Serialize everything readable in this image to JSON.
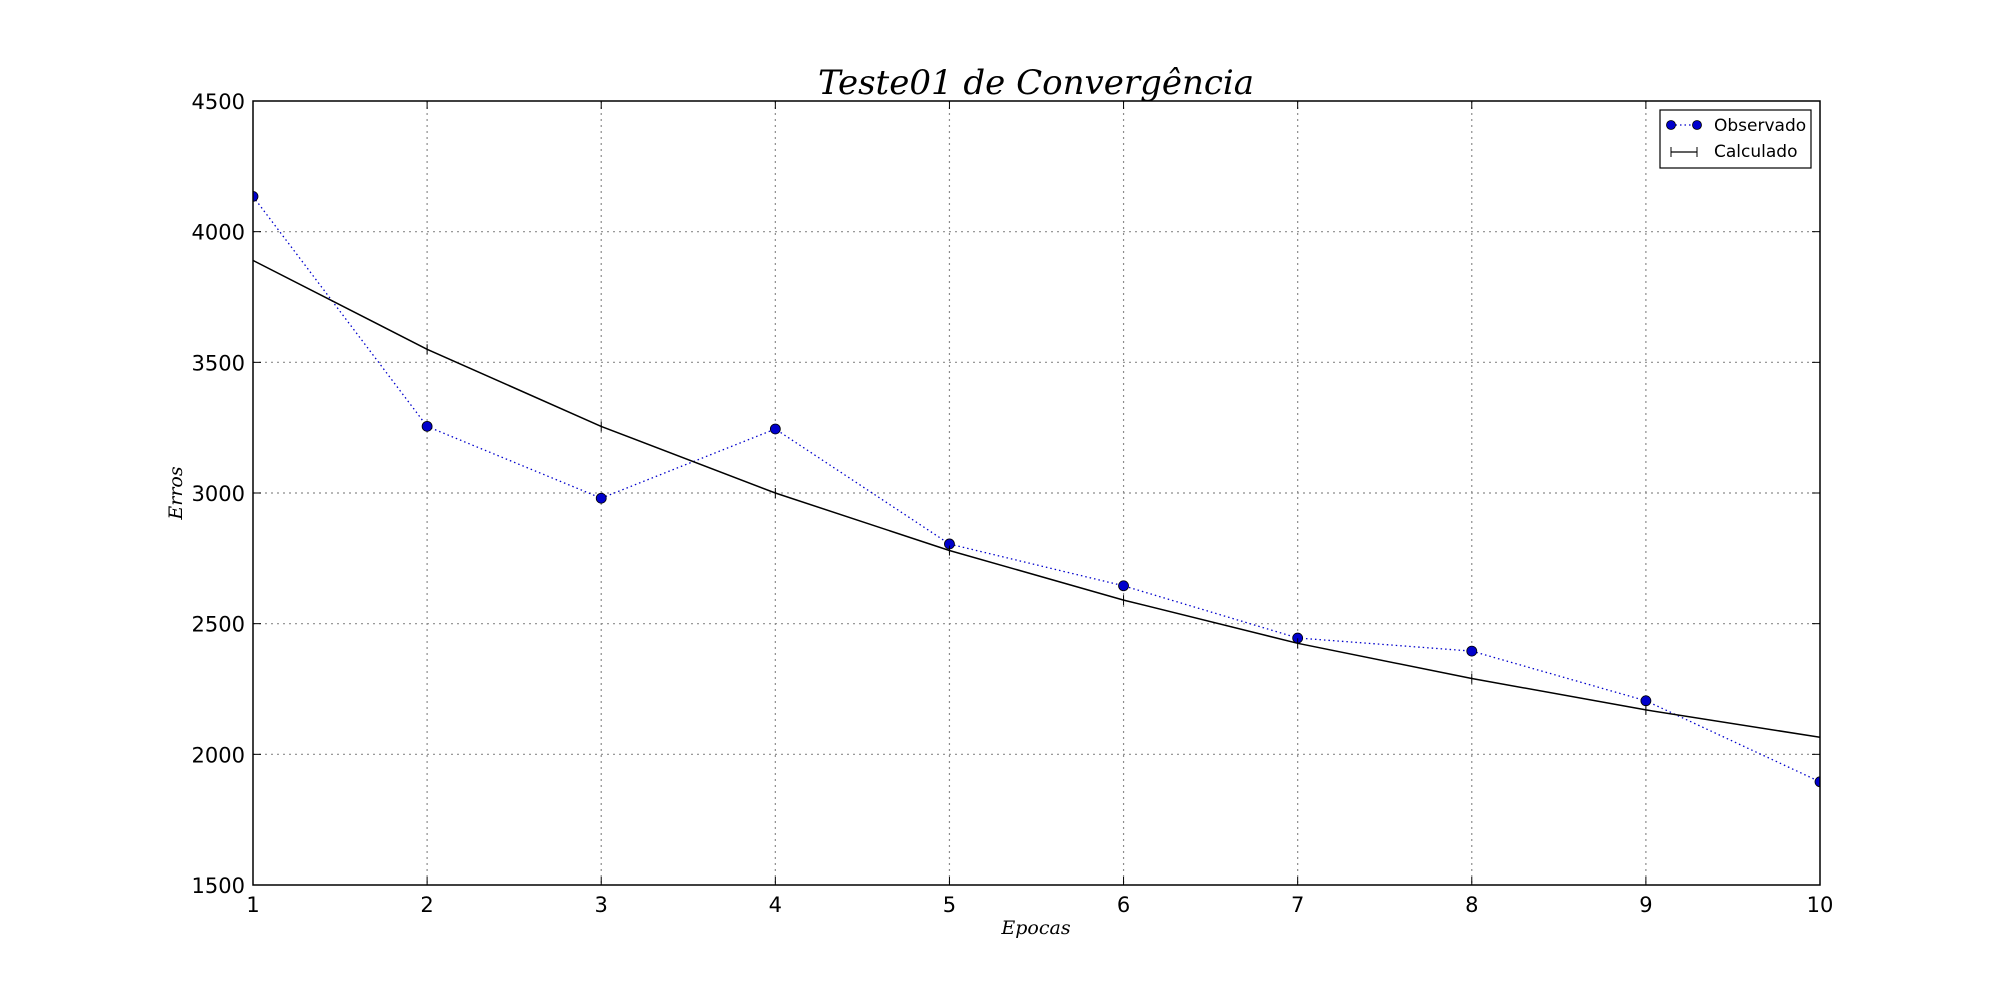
{
  "chart_data": {
    "type": "line",
    "title": "Teste01 de Convergência",
    "xlabel": "Epocas",
    "ylabel": "Erros",
    "x": [
      1,
      2,
      3,
      4,
      5,
      6,
      7,
      8,
      9,
      10
    ],
    "xlim": [
      1,
      10
    ],
    "ylim": [
      1500,
      4500
    ],
    "x_ticks": [
      "1",
      "2",
      "3",
      "4",
      "5",
      "6",
      "7",
      "8",
      "9",
      "10"
    ],
    "y_ticks": [
      "1500",
      "2000",
      "2500",
      "3000",
      "3500",
      "4000",
      "4500"
    ],
    "y_tick_values": [
      1500,
      2000,
      2500,
      3000,
      3500,
      4000,
      4500
    ],
    "grid": true,
    "legend_position": "top-right",
    "series": [
      {
        "name": "Observado",
        "values": [
          4135,
          3255,
          2980,
          3245,
          2805,
          2645,
          2445,
          2395,
          2205,
          1895
        ],
        "color": "#0000cc",
        "style": "dotted-with-circle-markers"
      },
      {
        "name": "Calculado",
        "values": [
          3890,
          3550,
          3255,
          3000,
          2780,
          2590,
          2425,
          2290,
          2170,
          2065
        ],
        "color": "#000000",
        "style": "solid-with-plus-markers"
      }
    ]
  }
}
